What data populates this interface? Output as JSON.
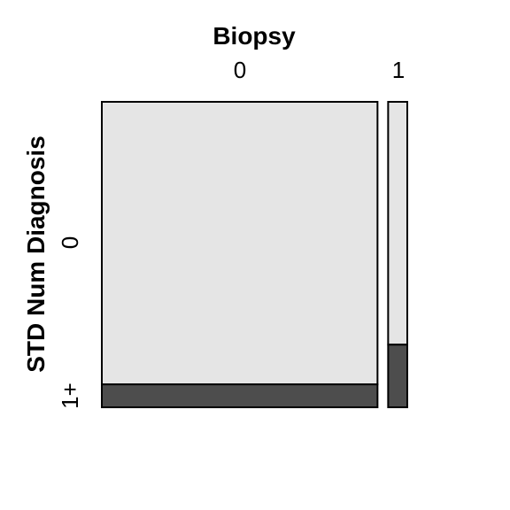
{
  "chart_data": {
    "type": "mosaic",
    "xlabel": "Biopsy",
    "ylabel": "STD Num Diagnosis",
    "x_categories": [
      "0",
      "1"
    ],
    "y_categories": [
      "0",
      "1+"
    ],
    "x_proportions": [
      0.935,
      0.065
    ],
    "cells": [
      {
        "x": "0",
        "y": "0",
        "proportion": 0.925
      },
      {
        "x": "0",
        "y": "1+",
        "proportion": 0.075
      },
      {
        "x": "1",
        "y": "0",
        "proportion": 0.795
      },
      {
        "x": "1",
        "y": "1+",
        "proportion": 0.205
      }
    ]
  },
  "colors": {
    "level_0": "#e5e5e5",
    "level_1plus": "#4d4d4d",
    "border": "#000000"
  }
}
